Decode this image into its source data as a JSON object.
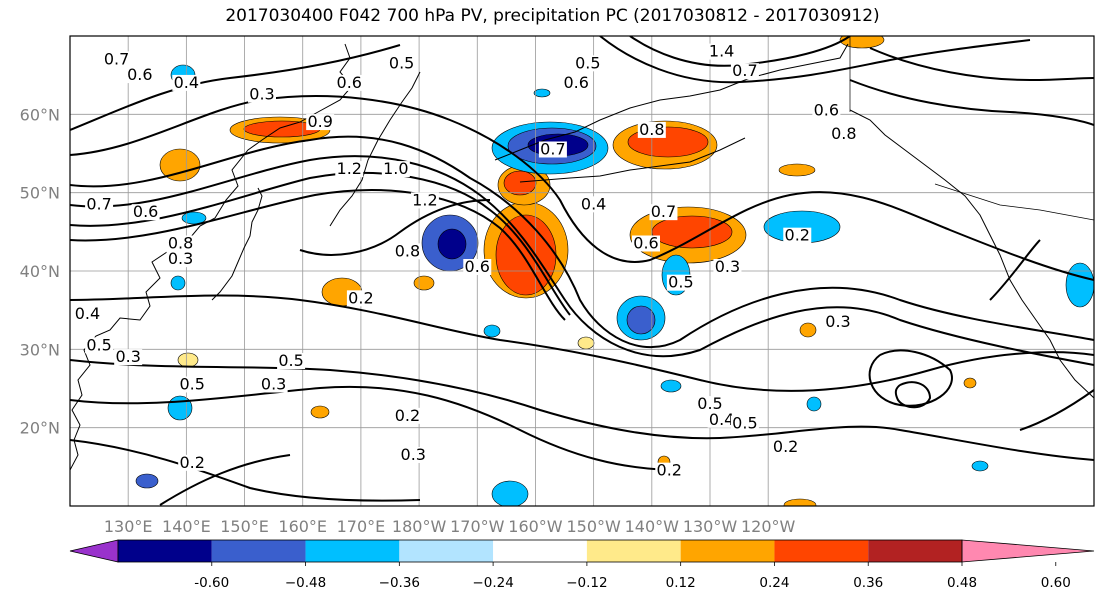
{
  "title": "2017030400 F042 700 hPa PV, precipitation PC (2017030812 - 2017030912)",
  "map": {
    "projection": "plate carree",
    "lon_range": [
      120,
      296
    ],
    "lat_range": [
      10,
      70
    ],
    "lat_ticks": [
      {
        "lat": 20,
        "label": "20°N"
      },
      {
        "lat": 30,
        "label": "30°N"
      },
      {
        "lat": 40,
        "label": "40°N"
      },
      {
        "lat": 50,
        "label": "50°N"
      },
      {
        "lat": 60,
        "label": "60°N"
      }
    ],
    "lon_ticks": [
      {
        "lon": 130,
        "label": "130°E"
      },
      {
        "lon": 140,
        "label": "140°E"
      },
      {
        "lon": 150,
        "label": "150°E"
      },
      {
        "lon": 160,
        "label": "160°E"
      },
      {
        "lon": 170,
        "label": "170°E"
      },
      {
        "lon": 180,
        "label": "180°W"
      },
      {
        "lon": 190,
        "label": "170°W"
      },
      {
        "lon": 200,
        "label": "160°W"
      },
      {
        "lon": 210,
        "label": "150°W"
      },
      {
        "lon": 220,
        "label": "140°W"
      },
      {
        "lon": 230,
        "label": "130°W"
      },
      {
        "lon": 240,
        "label": "120°W"
      }
    ],
    "grid": true,
    "contour_labels": [
      {
        "lon": 128,
        "lat": 66.5,
        "text": "0.7"
      },
      {
        "lon": 132,
        "lat": 64.5,
        "text": "0.6"
      },
      {
        "lon": 140,
        "lat": 63.5,
        "text": "0.4"
      },
      {
        "lon": 153,
        "lat": 62.0,
        "text": "0.3"
      },
      {
        "lon": 177,
        "lat": 66.0,
        "text": "0.5"
      },
      {
        "lon": 168,
        "lat": 63.5,
        "text": "0.6"
      },
      {
        "lon": 163,
        "lat": 58.5,
        "text": "0.9"
      },
      {
        "lon": 168,
        "lat": 52.5,
        "text": "1.2"
      },
      {
        "lon": 176,
        "lat": 52.5,
        "text": "1.0"
      },
      {
        "lon": 181,
        "lat": 48.5,
        "text": "1.2"
      },
      {
        "lon": 178,
        "lat": 42.0,
        "text": "0.8"
      },
      {
        "lon": 170,
        "lat": 36.0,
        "text": "0.2"
      },
      {
        "lon": 190,
        "lat": 40.0,
        "text": "0.6"
      },
      {
        "lon": 209,
        "lat": 66.0,
        "text": "0.5"
      },
      {
        "lon": 207,
        "lat": 63.5,
        "text": "0.6"
      },
      {
        "lon": 220,
        "lat": 57.5,
        "text": "0.8"
      },
      {
        "lon": 203,
        "lat": 55.0,
        "text": "0.7"
      },
      {
        "lon": 232,
        "lat": 67.5,
        "text": "1.4"
      },
      {
        "lon": 236,
        "lat": 65.0,
        "text": "0.7"
      },
      {
        "lon": 210,
        "lat": 48.0,
        "text": "0.4"
      },
      {
        "lon": 222,
        "lat": 47.0,
        "text": "0.7"
      },
      {
        "lon": 219,
        "lat": 43.0,
        "text": "0.6"
      },
      {
        "lon": 225,
        "lat": 38.0,
        "text": "0.5"
      },
      {
        "lon": 125,
        "lat": 48.0,
        "text": "0.7"
      },
      {
        "lon": 133,
        "lat": 47.0,
        "text": "0.6"
      },
      {
        "lon": 139,
        "lat": 43.0,
        "text": "0.8"
      },
      {
        "lon": 139,
        "lat": 41.0,
        "text": "0.3"
      },
      {
        "lon": 123,
        "lat": 34.0,
        "text": "0.4"
      },
      {
        "lon": 125,
        "lat": 30.0,
        "text": "0.5"
      },
      {
        "lon": 130,
        "lat": 28.5,
        "text": "0.3"
      },
      {
        "lon": 158,
        "lat": 28.0,
        "text": "0.5"
      },
      {
        "lon": 141,
        "lat": 25.0,
        "text": "0.5"
      },
      {
        "lon": 155,
        "lat": 25.0,
        "text": "0.3"
      },
      {
        "lon": 178,
        "lat": 21.0,
        "text": "0.2"
      },
      {
        "lon": 179,
        "lat": 16.0,
        "text": "0.3"
      },
      {
        "lon": 141,
        "lat": 15.0,
        "text": "0.2"
      },
      {
        "lon": 223,
        "lat": 14.0,
        "text": "0.2"
      },
      {
        "lon": 230,
        "lat": 22.5,
        "text": "0.5"
      },
      {
        "lon": 232,
        "lat": 20.5,
        "text": "0.4"
      },
      {
        "lon": 236,
        "lat": 20.0,
        "text": "0.5"
      },
      {
        "lon": 243,
        "lat": 17.0,
        "text": "0.2"
      },
      {
        "lon": 233,
        "lat": 40.0,
        "text": "0.3"
      },
      {
        "lon": 245,
        "lat": 44.0,
        "text": "0.2"
      },
      {
        "lon": 252,
        "lat": 33.0,
        "text": "0.3"
      },
      {
        "lon": 253,
        "lat": 57.0,
        "text": "0.8"
      },
      {
        "lon": 250,
        "lat": 60.0,
        "text": "0.6"
      }
    ]
  },
  "colorbar": {
    "levels": [
      "-0.60",
      "−0.48",
      "−0.36",
      "−0.24",
      "−0.12",
      "0.12",
      "0.24",
      "0.36",
      "0.48",
      "0.60"
    ],
    "colors": [
      "#9932cc",
      "#00008b",
      "#3a5fcd",
      "#00bfff",
      "#b2e4ff",
      "#ffffff",
      "#ffea8a",
      "#ffa500",
      "#ff4500",
      "#b22222",
      "#ff88b0"
    ]
  }
}
